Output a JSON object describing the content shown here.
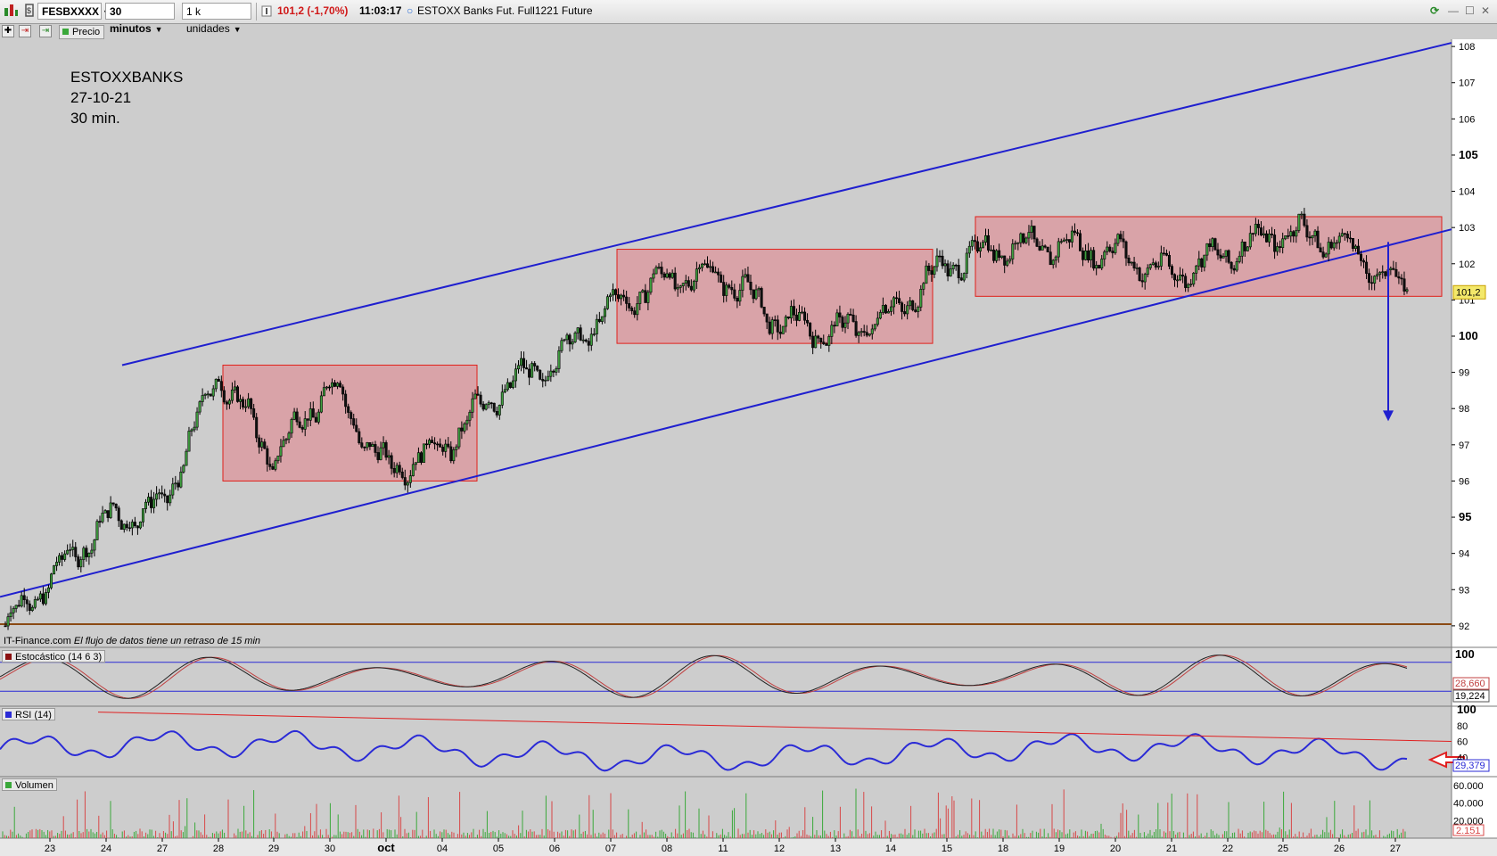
{
  "toolbar": {
    "symbol": "FESBXXXX",
    "timeframe": "30 minutos",
    "units": "1 k unidades",
    "last_price": "101,2 (-1,70%)",
    "time": "11:03:17",
    "instrument": "ESTOXX Banks Fut. Full1221 Future"
  },
  "subbar": {
    "price_label": "Precio"
  },
  "annotation": {
    "line1": "ESTOXXBANKS",
    "line2": "27-10-21",
    "line3": "30 min."
  },
  "credit": {
    "source": "IT-Finance.com",
    "delay": "El flujo de datos tiene un retraso de 15 min"
  },
  "price_badge": "101,2",
  "indicators": {
    "stoch": {
      "label": "Estocástico (14 6 3)",
      "top_tick": "100",
      "value1": "28,660",
      "value2": "19,224"
    },
    "rsi": {
      "label": "RSI (14)",
      "ticks": [
        "100",
        "80",
        "60",
        "40"
      ],
      "value": "29,379"
    },
    "volume": {
      "label": "Volumen",
      "ticks": [
        "60.000",
        "40.000",
        "20.000"
      ],
      "value": "2.151"
    }
  },
  "colors": {
    "channel": "#1f1fcf",
    "box_fill": "#d9a3a8",
    "box_stroke": "#e0201a",
    "support": "#8b4a14",
    "rsi_line": "#2b2bd6",
    "trend": "#e02020"
  },
  "chart_data": {
    "type": "candlestick",
    "title": "ESTOXXBANKS",
    "y_ticks": [
      "92",
      "93",
      "94",
      "95",
      "96",
      "97",
      "98",
      "99",
      "100",
      "101",
      "102",
      "103",
      "104",
      "105",
      "106",
      "107",
      "108"
    ],
    "bold_ticks": [
      "95",
      "100",
      "105"
    ],
    "ylim": [
      91.8,
      108.2
    ],
    "x_labels": [
      "23",
      "24",
      "27",
      "28",
      "29",
      "30",
      "oct",
      "04",
      "05",
      "06",
      "07",
      "08",
      "11",
      "12",
      "13",
      "14",
      "15",
      "18",
      "19",
      "20",
      "21",
      "22",
      "25",
      "26",
      "27"
    ],
    "key_points": [
      {
        "day": "23",
        "price": 92.0
      },
      {
        "day": "24",
        "price": 94.9
      },
      {
        "day": "27",
        "price": 95.3
      },
      {
        "day": "28",
        "price": 99.0
      },
      {
        "day": "29",
        "price": 96.6
      },
      {
        "day": "30",
        "price": 98.7
      },
      {
        "day": "oct",
        "price": 96.3
      },
      {
        "day": "04",
        "price": 96.9
      },
      {
        "day": "05",
        "price": 98.5
      },
      {
        "day": "06",
        "price": 99.3
      },
      {
        "day": "07",
        "price": 100.8
      },
      {
        "day": "08",
        "price": 101.6
      },
      {
        "day": "11",
        "price": 101.7
      },
      {
        "day": "12",
        "price": 100.4
      },
      {
        "day": "13",
        "price": 100.1
      },
      {
        "day": "14",
        "price": 100.6
      },
      {
        "day": "15",
        "price": 102.0
      },
      {
        "day": "18",
        "price": 102.5
      },
      {
        "day": "19",
        "price": 102.5
      },
      {
        "day": "20",
        "price": 102.3
      },
      {
        "day": "21",
        "price": 101.7
      },
      {
        "day": "22",
        "price": 102.3
      },
      {
        "day": "25",
        "price": 102.9
      },
      {
        "day": "26",
        "price": 102.6
      },
      {
        "day": "27",
        "price": 101.2
      }
    ],
    "channel": {
      "upper": [
        [
          96.4,
          99.2
        ],
        [
          108.1,
          103.2
        ]
      ],
      "lower": [
        [
          92.8,
          95.8
        ],
        [
          103.0,
          102.6
        ]
      ]
    },
    "consolidation_boxes": [
      {
        "from": "28",
        "to": "04",
        "low": 96.0,
        "high": 99.2
      },
      {
        "from": "07",
        "to": "14",
        "low": 99.8,
        "high": 102.4
      },
      {
        "from": "15",
        "to": "27",
        "low": 101.1,
        "high": 103.3
      }
    ],
    "support_level": 91.8,
    "target_arrow": {
      "from": 102.6,
      "to": 97.7
    },
    "last_value": 101.2
  }
}
